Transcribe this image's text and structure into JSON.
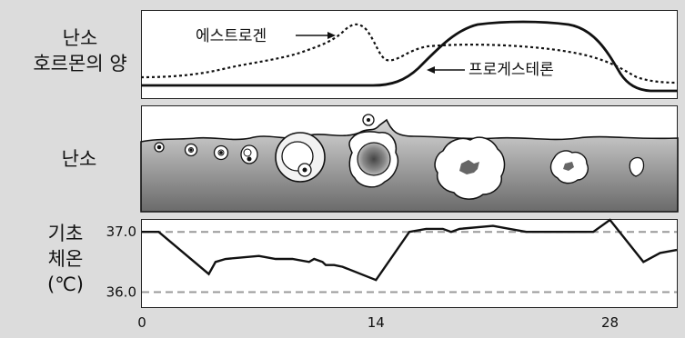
{
  "hormone_panel": {
    "label_line1": "난소",
    "label_line2": "호르몬의 양",
    "estrogen_label": "에스트로겐",
    "progesterone_label": "프로게스테론"
  },
  "ovary_panel": {
    "label": "난소"
  },
  "temperature_panel": {
    "label_line1": "기초",
    "label_line2": "체온",
    "label_line3": "(℃)"
  },
  "chart_data": {
    "type": "line",
    "x_ticks": [
      "0",
      "14",
      "28"
    ],
    "xlim": [
      0,
      32
    ],
    "ylim": [
      35.75,
      37.2
    ],
    "y_ticks": [
      "37.0",
      "36.0"
    ],
    "reference_lines": [
      37.0,
      36.0
    ],
    "series": [
      {
        "x": [
          0,
          1,
          4,
          4.4,
          5,
          7,
          8,
          9,
          10,
          10.3,
          10.8,
          11,
          11.5,
          12,
          14,
          16,
          17,
          18,
          18.5,
          19,
          21,
          22,
          23,
          24,
          25,
          26,
          27,
          28,
          30,
          31,
          32
        ],
        "values": [
          37.0,
          37.0,
          36.3,
          36.5,
          36.55,
          36.6,
          36.55,
          36.55,
          36.5,
          36.55,
          36.5,
          36.45,
          36.45,
          36.42,
          36.2,
          37.0,
          37.05,
          37.05,
          37.0,
          37.05,
          37.1,
          37.05,
          37.0,
          37.0,
          37.0,
          37.0,
          37.0,
          37.2,
          36.5,
          36.65,
          36.7
        ]
      }
    ]
  }
}
